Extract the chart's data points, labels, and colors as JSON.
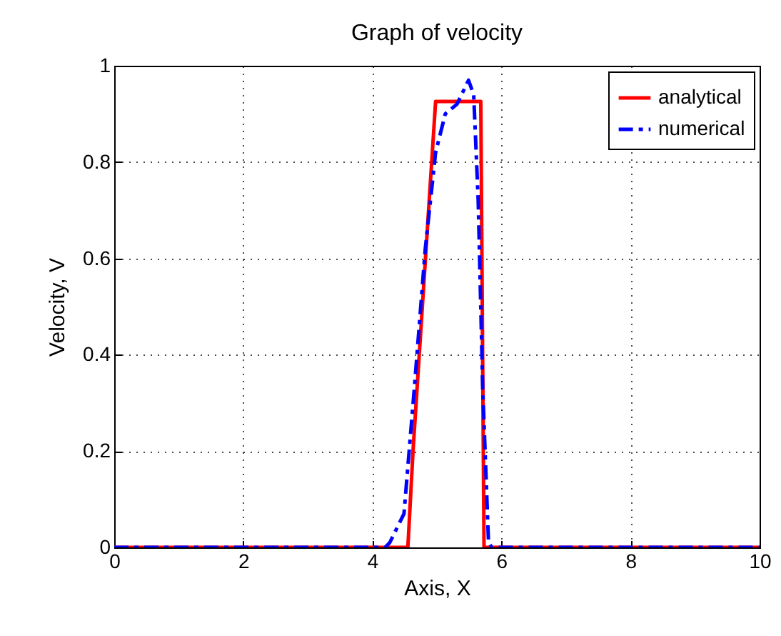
{
  "chart_data": {
    "type": "line",
    "title": "Graph of velocity",
    "xlabel": "Axis, X",
    "ylabel": "Velocity, V",
    "xlim": [
      0,
      10
    ],
    "xticks": [
      0,
      2,
      4,
      6,
      8,
      10
    ],
    "ylim": [
      0,
      1
    ],
    "yticks": [
      0,
      0.2,
      0.4,
      0.6,
      0.8,
      1
    ],
    "grid": true,
    "legend": "top right",
    "series": [
      {
        "name": "analytical",
        "color": "#ff0000",
        "line_style": "solid",
        "x": [
          0,
          4.55,
          4.63,
          4.98,
          5.68,
          5.73,
          10
        ],
        "values": [
          0,
          0,
          0.2,
          0.926,
          0.926,
          0,
          0
        ]
      },
      {
        "name": "numerical",
        "color": "#0000ff",
        "line_style": "dashed",
        "x": [
          0,
          4.2,
          4.27,
          4.49,
          4.65,
          4.82,
          4.98,
          5.13,
          5.31,
          5.49,
          5.57,
          5.64,
          5.71,
          5.8,
          5.85,
          10
        ],
        "values": [
          0,
          0,
          0.01,
          0.07,
          0.33,
          0.62,
          0.82,
          0.9,
          0.92,
          0.97,
          0.94,
          0.72,
          0.33,
          0.01,
          0,
          0
        ]
      }
    ]
  }
}
